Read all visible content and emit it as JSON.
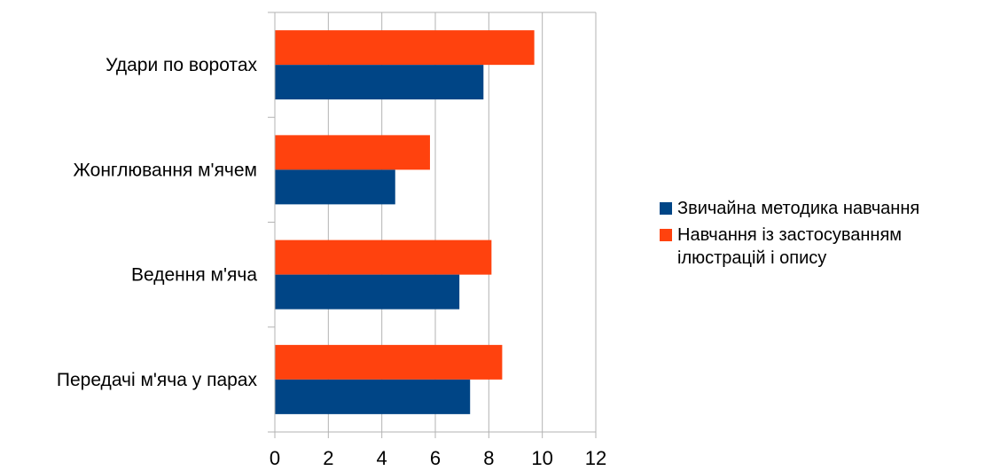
{
  "chart_data": {
    "type": "bar",
    "orientation": "horizontal",
    "categories": [
      "Удари по воротах",
      "Жонглювання м'ячем",
      "Ведення м'яча",
      "Передачі м'яча у парах"
    ],
    "series": [
      {
        "name": "Навчання із застосуванням ілюстрацій і опису",
        "color": "#ff420e",
        "values": [
          9.7,
          5.8,
          8.1,
          8.5
        ]
      },
      {
        "name": "Звичайна методика навчання",
        "color": "#004586",
        "values": [
          7.8,
          4.5,
          6.9,
          7.3
        ]
      }
    ],
    "xlim": [
      0,
      12
    ],
    "xticks": [
      "0",
      "2",
      "4",
      "6",
      "8",
      "10",
      "12"
    ],
    "grid": true,
    "legend_position": "right"
  },
  "legend": {
    "items": [
      {
        "label": "Звичайна методика навчання",
        "color": "#004586"
      },
      {
        "label": "Навчання із застосуванням ілюстрацій і опису",
        "color": "#ff420e"
      }
    ]
  }
}
